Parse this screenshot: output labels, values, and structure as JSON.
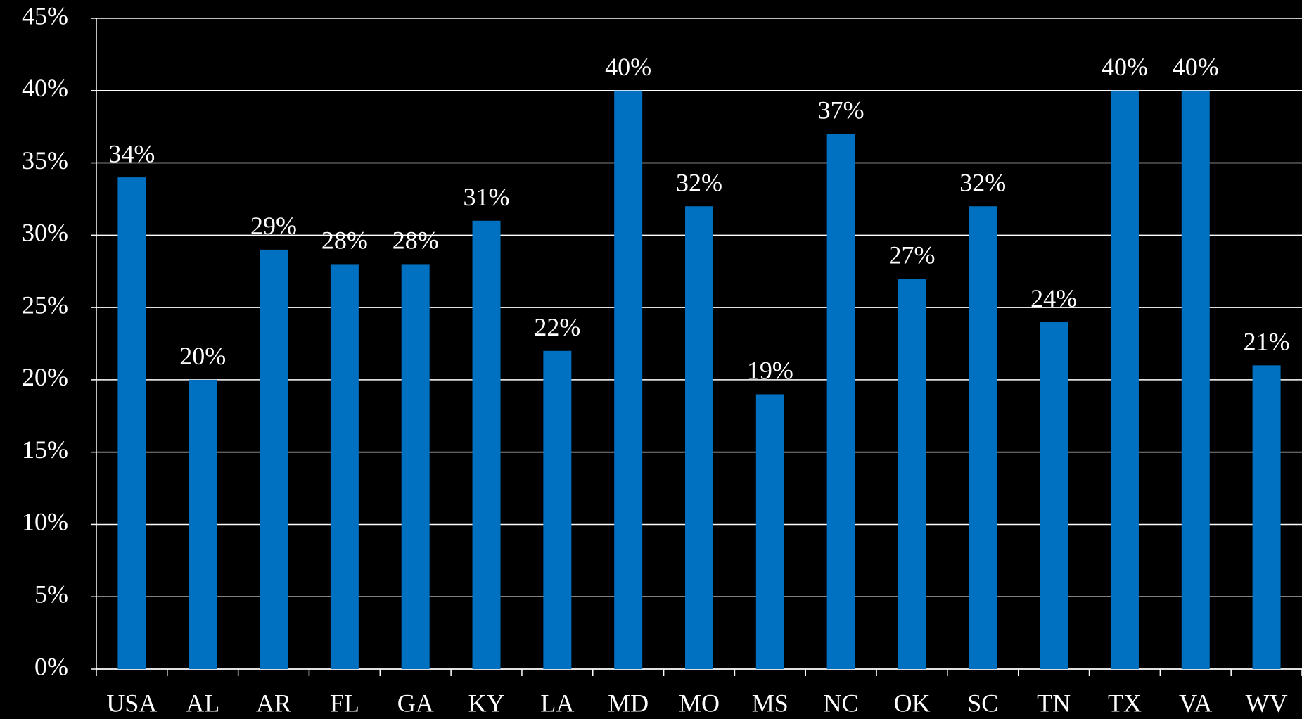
{
  "chart_data": {
    "type": "bar",
    "categories": [
      "USA",
      "AL",
      "AR",
      "FL",
      "GA",
      "KY",
      "LA",
      "MD",
      "MO",
      "MS",
      "NC",
      "OK",
      "SC",
      "TN",
      "TX",
      "VA",
      "WV"
    ],
    "values": [
      34,
      20,
      29,
      28,
      28,
      31,
      22,
      40,
      32,
      19,
      37,
      27,
      32,
      24,
      40,
      40,
      21
    ],
    "value_labels": [
      "34%",
      "20%",
      "29%",
      "28%",
      "28%",
      "31%",
      "22%",
      "40%",
      "32%",
      "19%",
      "37%",
      "27%",
      "32%",
      "24%",
      "40%",
      "40%",
      "21%"
    ],
    "color": "#0070c0",
    "ylim": [
      0,
      45
    ],
    "yticks": [
      {
        "value": 0,
        "label": "0%"
      },
      {
        "value": 5,
        "label": "5%"
      },
      {
        "value": 10,
        "label": "10%"
      },
      {
        "value": 15,
        "label": "15%"
      },
      {
        "value": 20,
        "label": "20%"
      },
      {
        "value": 25,
        "label": "25%"
      },
      {
        "value": 30,
        "label": "30%"
      },
      {
        "value": 35,
        "label": "35%"
      },
      {
        "value": 40,
        "label": "40%"
      },
      {
        "value": 45,
        "label": "45%"
      }
    ],
    "grid": true
  }
}
